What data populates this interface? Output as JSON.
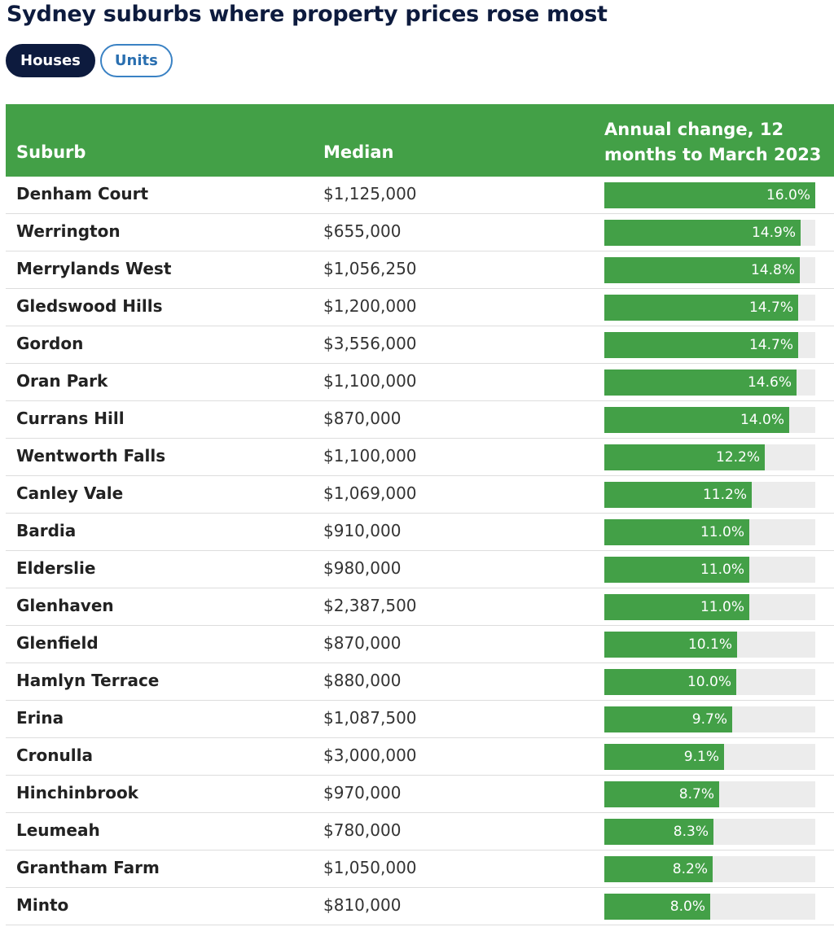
{
  "title": "Sydney suburbs where property prices rose most",
  "tabs": [
    {
      "label": "Houses",
      "active": true
    },
    {
      "label": "Units",
      "active": false
    }
  ],
  "colors": {
    "header_bg": "#43a047",
    "bar": "#43a047",
    "bar_track": "#ececec",
    "title": "#0d1b3e",
    "tab_active_bg": "#0d1b3e",
    "tab_inactive_border": "#3a82c4"
  },
  "table": {
    "headers": {
      "suburb": "Suburb",
      "median": "Median",
      "change": "Annual change, 12 months to March 2023"
    }
  },
  "chart_data": {
    "type": "table",
    "title": "Sydney suburbs where property prices rose most",
    "columns": [
      "Suburb",
      "Median",
      "Annual change, 12 months to March 2023"
    ],
    "bar_max": 16.0,
    "rows": [
      {
        "suburb": "Denham Court",
        "median": "$1,125,000",
        "change": 16.0,
        "change_label": "16.0%"
      },
      {
        "suburb": "Werrington",
        "median": "$655,000",
        "change": 14.9,
        "change_label": "14.9%"
      },
      {
        "suburb": "Merrylands West",
        "median": "$1,056,250",
        "change": 14.8,
        "change_label": "14.8%"
      },
      {
        "suburb": "Gledswood Hills",
        "median": "$1,200,000",
        "change": 14.7,
        "change_label": "14.7%"
      },
      {
        "suburb": "Gordon",
        "median": "$3,556,000",
        "change": 14.7,
        "change_label": "14.7%"
      },
      {
        "suburb": "Oran Park",
        "median": "$1,100,000",
        "change": 14.6,
        "change_label": "14.6%"
      },
      {
        "suburb": "Currans Hill",
        "median": "$870,000",
        "change": 14.0,
        "change_label": "14.0%"
      },
      {
        "suburb": "Wentworth Falls",
        "median": "$1,100,000",
        "change": 12.2,
        "change_label": "12.2%"
      },
      {
        "suburb": "Canley Vale",
        "median": "$1,069,000",
        "change": 11.2,
        "change_label": "11.2%"
      },
      {
        "suburb": "Bardia",
        "median": "$910,000",
        "change": 11.0,
        "change_label": "11.0%"
      },
      {
        "suburb": "Elderslie",
        "median": "$980,000",
        "change": 11.0,
        "change_label": "11.0%"
      },
      {
        "suburb": "Glenhaven",
        "median": "$2,387,500",
        "change": 11.0,
        "change_label": "11.0%"
      },
      {
        "suburb": "Glenfield",
        "median": "$870,000",
        "change": 10.1,
        "change_label": "10.1%"
      },
      {
        "suburb": "Hamlyn Terrace",
        "median": "$880,000",
        "change": 10.0,
        "change_label": "10.0%"
      },
      {
        "suburb": "Erina",
        "median": "$1,087,500",
        "change": 9.7,
        "change_label": "9.7%"
      },
      {
        "suburb": "Cronulla",
        "median": "$3,000,000",
        "change": 9.1,
        "change_label": "9.1%"
      },
      {
        "suburb": "Hinchinbrook",
        "median": "$970,000",
        "change": 8.7,
        "change_label": "8.7%"
      },
      {
        "suburb": "Leumeah",
        "median": "$780,000",
        "change": 8.3,
        "change_label": "8.3%"
      },
      {
        "suburb": "Grantham Farm",
        "median": "$1,050,000",
        "change": 8.2,
        "change_label": "8.2%"
      },
      {
        "suburb": "Minto",
        "median": "$810,000",
        "change": 8.0,
        "change_label": "8.0%"
      }
    ]
  }
}
